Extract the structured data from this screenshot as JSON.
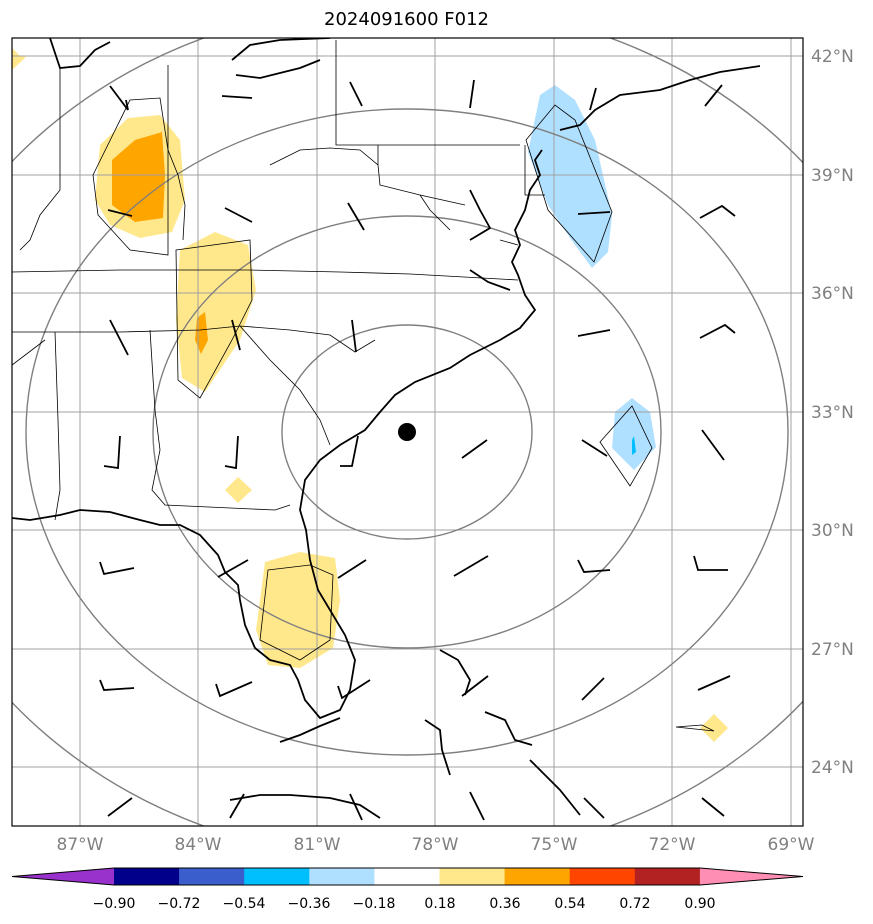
{
  "title": "2024091600 F012",
  "lat_labels": [
    "42°N",
    "39°N",
    "36°N",
    "33°N",
    "30°N",
    "27°N",
    "24°N"
  ],
  "lon_labels": [
    "87°W",
    "84°W",
    "81°W",
    "78°W",
    "75°W",
    "72°W",
    "69°W"
  ],
  "colorbar": {
    "ticks": [
      "−0.90",
      "−0.72",
      "−0.54",
      "−0.36",
      "−0.18",
      "0.18",
      "0.36",
      "0.54",
      "0.72",
      "0.90"
    ],
    "colors": [
      "#9932cc",
      "#00008b",
      "#3a5fcd",
      "#00bfff",
      "#b0e0ff",
      "#ffffff",
      "#ffe88c",
      "#ffa500",
      "#ff4500",
      "#b22222",
      "#ff8eb4"
    ]
  },
  "storm_center": {
    "lat": "32.5°N",
    "lon": "78.7°W"
  }
}
